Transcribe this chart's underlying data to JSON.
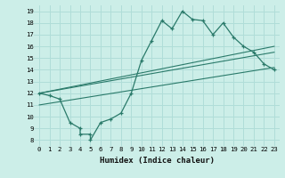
{
  "title": "",
  "xlabel": "Humidex (Indice chaleur)",
  "ylabel": "",
  "bg_color": "#cceee8",
  "grid_color": "#b0ddd8",
  "line_color": "#2a7a6a",
  "x_ticks": [
    0,
    1,
    2,
    3,
    4,
    5,
    6,
    7,
    8,
    9,
    10,
    11,
    12,
    13,
    14,
    15,
    16,
    17,
    18,
    19,
    20,
    21,
    22,
    23
  ],
  "y_ticks": [
    8,
    9,
    10,
    11,
    12,
    13,
    14,
    15,
    16,
    17,
    18,
    19
  ],
  "xlim": [
    -0.5,
    23.5
  ],
  "ylim": [
    7.5,
    19.5
  ],
  "main_x": [
    0,
    1,
    2,
    3,
    4,
    4,
    5,
    5,
    6,
    7,
    8,
    9,
    10,
    11,
    12,
    13,
    14,
    15,
    16,
    17,
    18,
    19,
    20,
    21,
    22,
    23
  ],
  "main_y": [
    12,
    11.8,
    11.5,
    9.5,
    9.0,
    8.5,
    8.5,
    8.0,
    9.5,
    9.8,
    10.3,
    12.0,
    14.8,
    16.5,
    18.2,
    17.5,
    19.0,
    18.3,
    18.2,
    17.0,
    18.0,
    16.8,
    16.0,
    15.5,
    14.5,
    14.0
  ],
  "line1_x": [
    0,
    23
  ],
  "line1_y": [
    12.0,
    16.0
  ],
  "line2_x": [
    0,
    23
  ],
  "line2_y": [
    11.0,
    14.2
  ],
  "line3_x": [
    0,
    23
  ],
  "line3_y": [
    12.0,
    15.5
  ],
  "xlabel_fontsize": 6.5,
  "tick_fontsize": 5.2
}
